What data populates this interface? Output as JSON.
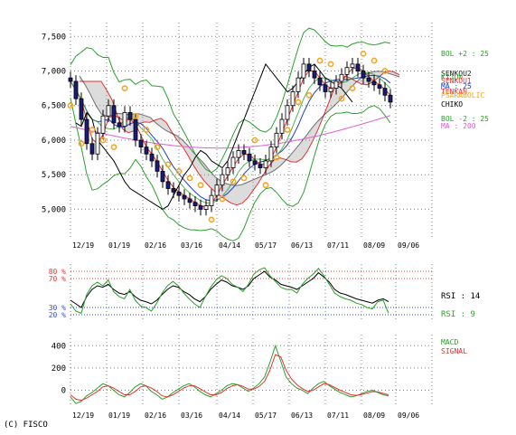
{
  "copyright": "(C) FISCO",
  "colors": {
    "grid": "#808080",
    "price_up": "#ffffff",
    "price_down": "#1b1b7a",
    "bol": "#2ca02c",
    "kijun": "#1a1a1a",
    "tenkan": "#e63232",
    "chiko": "#000000",
    "ma25": "#1f3fbf",
    "ma200": "#e060d0",
    "psar": "#f5a623",
    "cloud": "#9a9a9a",
    "rsi14": "#000000",
    "rsi9": "#2ca02c",
    "macd": "#2ca02c",
    "signal": "#e63232",
    "ob_line": "#e63232",
    "os_line": "#3050e0"
  },
  "chart_data": [
    {
      "type": "candlestick",
      "panel": "price",
      "ylim": [
        4600,
        7700
      ],
      "yticks": [
        5000,
        5500,
        6000,
        6500,
        7000,
        7500
      ],
      "ytick_labels": [
        "5,000",
        "5,500",
        "6,000",
        "6,500",
        "7,000",
        "7,500"
      ],
      "xtick_labels": [
        "12/19",
        "01/19",
        "02/16",
        "03/16",
        "04/14",
        "05/17",
        "06/13",
        "07/11",
        "08/09",
        "09/06"
      ],
      "ohlc_close_series": [
        6850,
        6600,
        6300,
        5950,
        5800,
        6100,
        6350,
        6500,
        6250,
        6200,
        6400,
        6300,
        6000,
        5900,
        5800,
        5700,
        5550,
        5400,
        5300,
        5250,
        5200,
        5150,
        5100,
        5050,
        5000,
        5050,
        5200,
        5350,
        5500,
        5600,
        5750,
        5850,
        5800,
        5700,
        5650,
        5600,
        5700,
        5900,
        6100,
        6300,
        6500,
        6700,
        6900,
        7100,
        7000,
        6900,
        6800,
        6700,
        6750,
        6850,
        6950,
        7050,
        7100,
        7000,
        6900,
        6850,
        6800,
        6750,
        6650,
        6550
      ],
      "legend": [
        {
          "label": "BOL +2 : 25",
          "color_key": "bol"
        },
        {
          "label": "SENKOU2",
          "color_key": "kijun"
        },
        {
          "label": "KIJUN",
          "color_key": "bol"
        },
        {
          "label": "SENKOU1",
          "color_key": "tenkan"
        },
        {
          "label": "MA : 25",
          "color_key": "ma25"
        },
        {
          "label": "TENKAN",
          "color_key": "tenkan"
        },
        {
          "label": "PSARABOLIC",
          "color_key": "psar"
        },
        {
          "label": "CHIKO",
          "color_key": "chiko"
        },
        {
          "label": "BOL -2 : 25",
          "color_key": "bol"
        },
        {
          "label": "MA : 200",
          "color_key": "ma200"
        }
      ]
    },
    {
      "type": "line",
      "panel": "rsi",
      "ylim": [
        10,
        90
      ],
      "yticks": [
        80,
        70,
        30,
        20
      ],
      "ytick_labels": [
        "80 %",
        "70 %",
        "30 %",
        "20 %"
      ],
      "series": [
        {
          "name": "RSI : 14",
          "color_key": "rsi14",
          "values": [
            40,
            35,
            30,
            45,
            55,
            60,
            58,
            62,
            55,
            50,
            48,
            52,
            45,
            40,
            38,
            35,
            40,
            48,
            55,
            60,
            58,
            52,
            48,
            42,
            38,
            45,
            55,
            62,
            68,
            65,
            60,
            58,
            55,
            60,
            70,
            75,
            80,
            72,
            68,
            62,
            60,
            58,
            55,
            60,
            65,
            70,
            78,
            72,
            65,
            55,
            50,
            48,
            45,
            42,
            40,
            38,
            36,
            40,
            42,
            38
          ]
        },
        {
          "name": "RSI : 9",
          "color_key": "rsi9",
          "values": [
            35,
            25,
            22,
            48,
            60,
            65,
            60,
            68,
            52,
            45,
            42,
            55,
            40,
            32,
            30,
            25,
            36,
            50,
            60,
            66,
            60,
            50,
            42,
            35,
            30,
            45,
            58,
            68,
            74,
            70,
            62,
            58,
            52,
            62,
            76,
            82,
            85,
            74,
            66,
            58,
            55,
            55,
            50,
            62,
            70,
            76,
            84,
            74,
            62,
            50,
            45,
            42,
            40,
            36,
            34,
            30,
            28,
            38,
            40,
            22
          ]
        }
      ]
    },
    {
      "type": "line",
      "panel": "macd",
      "ylim": [
        -150,
        500
      ],
      "yticks": [
        400,
        200,
        0
      ],
      "ytick_labels": [
        "400",
        "200",
        "0"
      ],
      "series": [
        {
          "name": "MACD",
          "color_key": "macd",
          "values": [
            -60,
            -120,
            -100,
            -50,
            -20,
            20,
            60,
            40,
            0,
            -40,
            -60,
            -20,
            30,
            60,
            40,
            -10,
            -40,
            -80,
            -60,
            -20,
            10,
            40,
            60,
            30,
            -10,
            -40,
            -60,
            -30,
            0,
            40,
            60,
            50,
            20,
            -10,
            20,
            60,
            120,
            250,
            400,
            260,
            120,
            60,
            20,
            0,
            -30,
            20,
            60,
            80,
            40,
            10,
            -20,
            -40,
            -60,
            -50,
            -30,
            -10,
            0,
            -20,
            -40,
            -50
          ]
        },
        {
          "name": "SIGNAL",
          "color_key": "signal",
          "values": [
            -40,
            -80,
            -90,
            -70,
            -40,
            -10,
            30,
            40,
            20,
            -10,
            -40,
            -40,
            -10,
            30,
            40,
            20,
            -10,
            -50,
            -60,
            -40,
            -10,
            20,
            40,
            40,
            15,
            -15,
            -40,
            -40,
            -20,
            15,
            40,
            50,
            35,
            10,
            10,
            35,
            80,
            180,
            320,
            300,
            180,
            100,
            50,
            15,
            -10,
            0,
            30,
            60,
            50,
            25,
            0,
            -20,
            -40,
            -45,
            -38,
            -25,
            -12,
            -15,
            -28,
            -40
          ]
        }
      ]
    }
  ]
}
